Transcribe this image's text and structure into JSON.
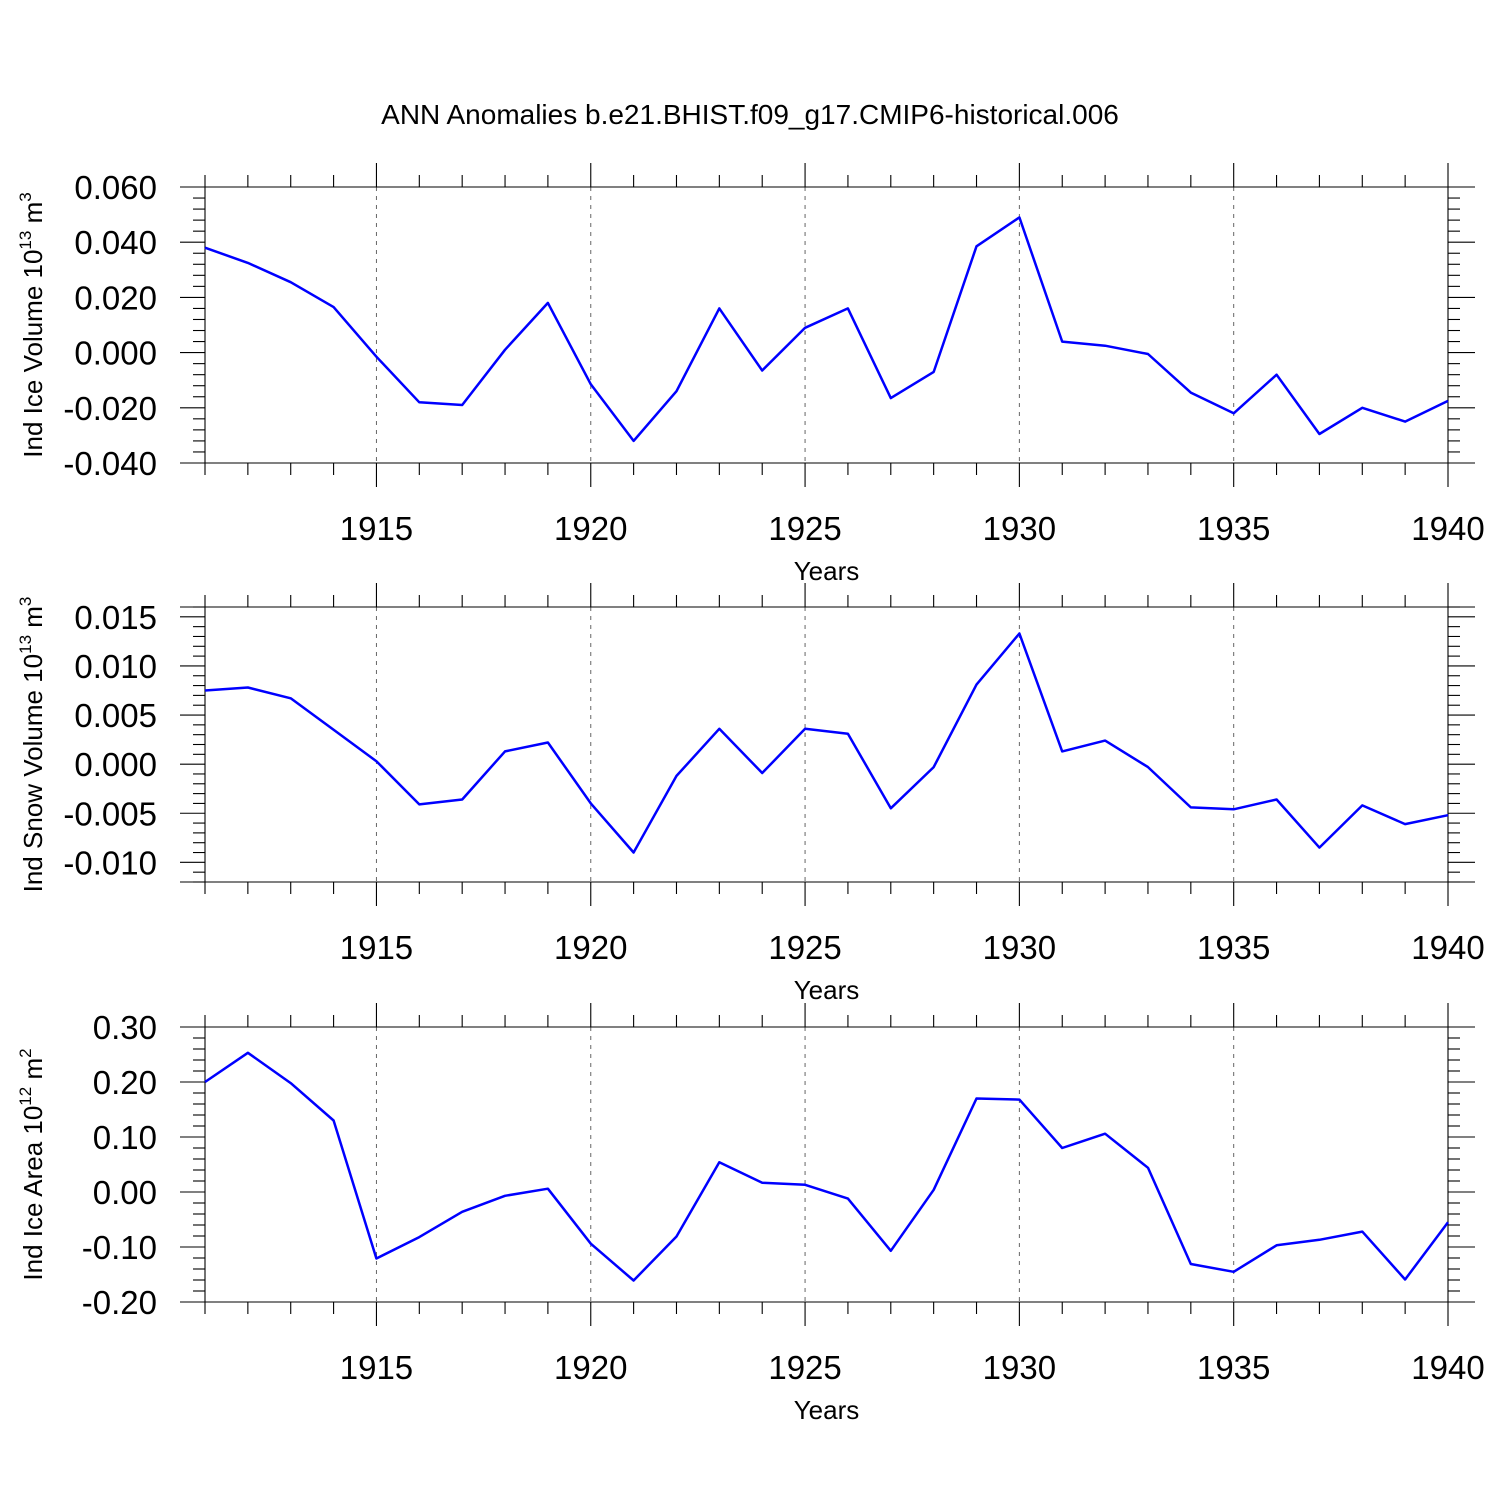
{
  "figure": {
    "title": "ANN Anomalies b.e21.BHIST.f09_g17.CMIP6-historical.006"
  },
  "colors": {
    "series": "#0000ff",
    "axes": "#000000",
    "grid": "#666666"
  },
  "chart_data": [
    {
      "type": "line",
      "title": "",
      "xlabel": "Years",
      "ylabel": {
        "base": "Ind Ice Volume 10",
        "exp": "13",
        "unit": " m",
        "unit_exp": "3"
      },
      "xlim": [
        1911,
        1940
      ],
      "ylim": [
        -0.04,
        0.06
      ],
      "grid": "x-dashed",
      "xticks": [
        1915,
        1920,
        1925,
        1930,
        1935,
        1940
      ],
      "yticks": [
        -0.04,
        -0.02,
        0.0,
        0.02,
        0.04,
        0.06
      ],
      "ytick_labels": [
        "-0.040",
        "-0.020",
        "0.000",
        "0.020",
        "0.040",
        "0.060"
      ],
      "x": [
        1911,
        1912,
        1913,
        1914,
        1915,
        1916,
        1917,
        1918,
        1919,
        1920,
        1921,
        1922,
        1923,
        1924,
        1925,
        1926,
        1927,
        1928,
        1929,
        1930,
        1931,
        1932,
        1933,
        1934,
        1935,
        1936,
        1937,
        1938,
        1939,
        1940
      ],
      "series": [
        {
          "name": "Ind Ice Volume",
          "values": [
            0.038,
            0.0325,
            0.0255,
            0.0165,
            -0.0015,
            -0.018,
            -0.019,
            0.001,
            0.018,
            -0.0115,
            -0.032,
            -0.014,
            0.016,
            -0.0065,
            0.009,
            0.016,
            -0.0165,
            -0.007,
            0.0385,
            0.049,
            0.004,
            0.0025,
            -0.0005,
            -0.0145,
            -0.022,
            -0.008,
            -0.0295,
            -0.02,
            -0.025,
            -0.0175
          ]
        }
      ]
    },
    {
      "type": "line",
      "title": "",
      "xlabel": "Years",
      "ylabel": {
        "base": "Ind Snow Volume 10",
        "exp": "13",
        "unit": " m",
        "unit_exp": "3"
      },
      "xlim": [
        1911,
        1940
      ],
      "ylim": [
        -0.012,
        0.016
      ],
      "grid": "x-dashed",
      "xticks": [
        1915,
        1920,
        1925,
        1930,
        1935,
        1940
      ],
      "yticks": [
        -0.01,
        -0.005,
        0.0,
        0.005,
        0.01,
        0.015
      ],
      "ytick_labels": [
        "-0.010",
        "-0.005",
        "0.000",
        "0.005",
        "0.010",
        "0.015"
      ],
      "x": [
        1911,
        1912,
        1913,
        1914,
        1915,
        1916,
        1917,
        1918,
        1919,
        1920,
        1921,
        1922,
        1923,
        1924,
        1925,
        1926,
        1927,
        1928,
        1929,
        1930,
        1931,
        1932,
        1933,
        1934,
        1935,
        1936,
        1937,
        1938,
        1939,
        1940
      ],
      "series": [
        {
          "name": "Ind Snow Volume",
          "values": [
            0.0075,
            0.0078,
            0.0067,
            0.0035,
            0.0003,
            -0.0041,
            -0.0036,
            0.0013,
            0.0022,
            -0.004,
            -0.009,
            -0.0012,
            0.0036,
            -0.0009,
            0.0036,
            0.0031,
            -0.0045,
            -0.0003,
            0.0081,
            0.0133,
            0.0013,
            0.0024,
            -0.0003,
            -0.0044,
            -0.0046,
            -0.0036,
            -0.0085,
            -0.0042,
            -0.0061,
            -0.0052
          ]
        }
      ]
    },
    {
      "type": "line",
      "title": "",
      "xlabel": "Years",
      "ylabel": {
        "base": "Ind Ice Area 10",
        "exp": "12",
        "unit": " m",
        "unit_exp": "2"
      },
      "xlim": [
        1911,
        1940
      ],
      "ylim": [
        -0.2,
        0.3
      ],
      "grid": "x-dashed",
      "xticks": [
        1915,
        1920,
        1925,
        1930,
        1935,
        1940
      ],
      "yticks": [
        -0.2,
        -0.1,
        0.0,
        0.1,
        0.2,
        0.3
      ],
      "ytick_labels": [
        "-0.20",
        "-0.10",
        "0.00",
        "0.10",
        "0.20",
        "0.30"
      ],
      "x": [
        1911,
        1912,
        1913,
        1914,
        1915,
        1916,
        1917,
        1918,
        1919,
        1920,
        1921,
        1922,
        1923,
        1924,
        1925,
        1926,
        1927,
        1928,
        1929,
        1930,
        1931,
        1932,
        1933,
        1934,
        1935,
        1936,
        1937,
        1938,
        1939,
        1940
      ],
      "series": [
        {
          "name": "Ind Ice Area",
          "values": [
            0.2,
            0.253,
            0.198,
            0.13,
            -0.121,
            -0.082,
            -0.036,
            -0.007,
            0.006,
            -0.094,
            -0.161,
            -0.081,
            0.054,
            0.017,
            0.013,
            -0.012,
            -0.107,
            0.004,
            0.17,
            0.168,
            0.08,
            0.106,
            0.044,
            -0.131,
            -0.145,
            -0.097,
            -0.087,
            -0.072,
            -0.159,
            -0.055
          ]
        }
      ]
    }
  ]
}
